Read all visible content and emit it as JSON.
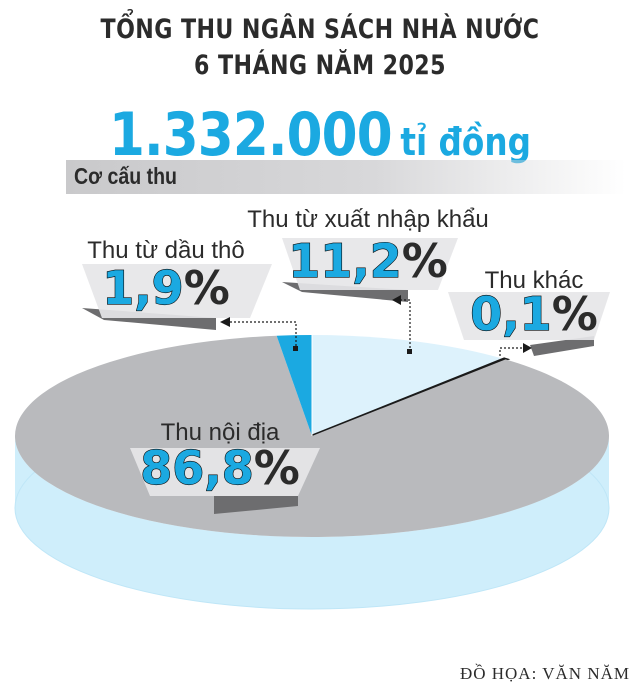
{
  "title": {
    "line1": "TỔNG THU NGÂN SÁCH NHÀ NƯỚC",
    "line2": "6 THÁNG NĂM 2025"
  },
  "total": {
    "value": "1.332.000",
    "unit": "tỉ đồng"
  },
  "section_label": "Cơ cấu thu",
  "credit": "ĐỒ HỌA: VĂN NĂM",
  "colors": {
    "accent": "#1ba9e1",
    "pie_main": "#b9babd",
    "pie_light": "#ddf2fc",
    "pie_side": "#cfeefb",
    "label_box": "#e6e6e8",
    "label_shadow": "#6d6d6f",
    "text": "#2b2b2b"
  },
  "chart_data": {
    "type": "pie",
    "title": "",
    "slices": [
      {
        "label": "Thu nội địa",
        "value": 86.8,
        "display": "86,8"
      },
      {
        "label": "Thu từ dầu thô",
        "value": 1.9,
        "display": "1,9"
      },
      {
        "label": "Thu từ xuất nhập khẩu",
        "value": 11.2,
        "display": "11,2"
      },
      {
        "label": "Thu khác",
        "value": 0.1,
        "display": "0,1"
      }
    ],
    "unit": "%"
  }
}
